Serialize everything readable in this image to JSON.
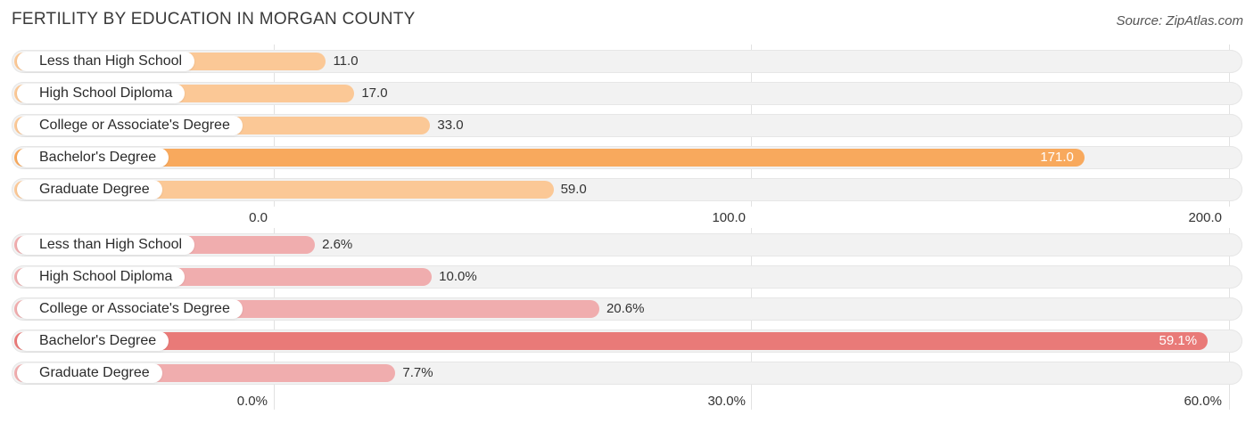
{
  "header": {
    "title": "FERTILITY BY EDUCATION IN MORGAN COUNTY",
    "source": "Source: ZipAtlas.com"
  },
  "colors": {
    "top_bar": "#fbc896",
    "top_bar_highlight": "#f8a95d",
    "bottom_bar": "#f0adae",
    "bottom_bar_highlight": "#e97a78"
  },
  "chart_data": [
    {
      "type": "bar",
      "orientation": "horizontal",
      "categories": [
        "Less than High School",
        "High School Diploma",
        "College or Associate's Degree",
        "Bachelor's Degree",
        "Graduate Degree"
      ],
      "values": [
        11.0,
        17.0,
        33.0,
        171.0,
        59.0
      ],
      "value_labels": [
        "11.0",
        "17.0",
        "33.0",
        "171.0",
        "59.0"
      ],
      "highlight_index": 3,
      "xlim": [
        0,
        200
      ],
      "ticks": [
        0,
        100,
        200
      ],
      "tick_labels": [
        "0.0",
        "100.0",
        "200.0"
      ],
      "grid": true
    },
    {
      "type": "bar",
      "orientation": "horizontal",
      "categories": [
        "Less than High School",
        "High School Diploma",
        "College or Associate's Degree",
        "Bachelor's Degree",
        "Graduate Degree"
      ],
      "values": [
        2.6,
        10.0,
        20.6,
        59.1,
        7.7
      ],
      "value_labels": [
        "2.6%",
        "10.0%",
        "20.6%",
        "59.1%",
        "7.7%"
      ],
      "highlight_index": 3,
      "xlim": [
        0,
        60
      ],
      "ticks": [
        0,
        30,
        60
      ],
      "tick_labels": [
        "0.0%",
        "30.0%",
        "60.0%"
      ],
      "grid": true
    }
  ]
}
